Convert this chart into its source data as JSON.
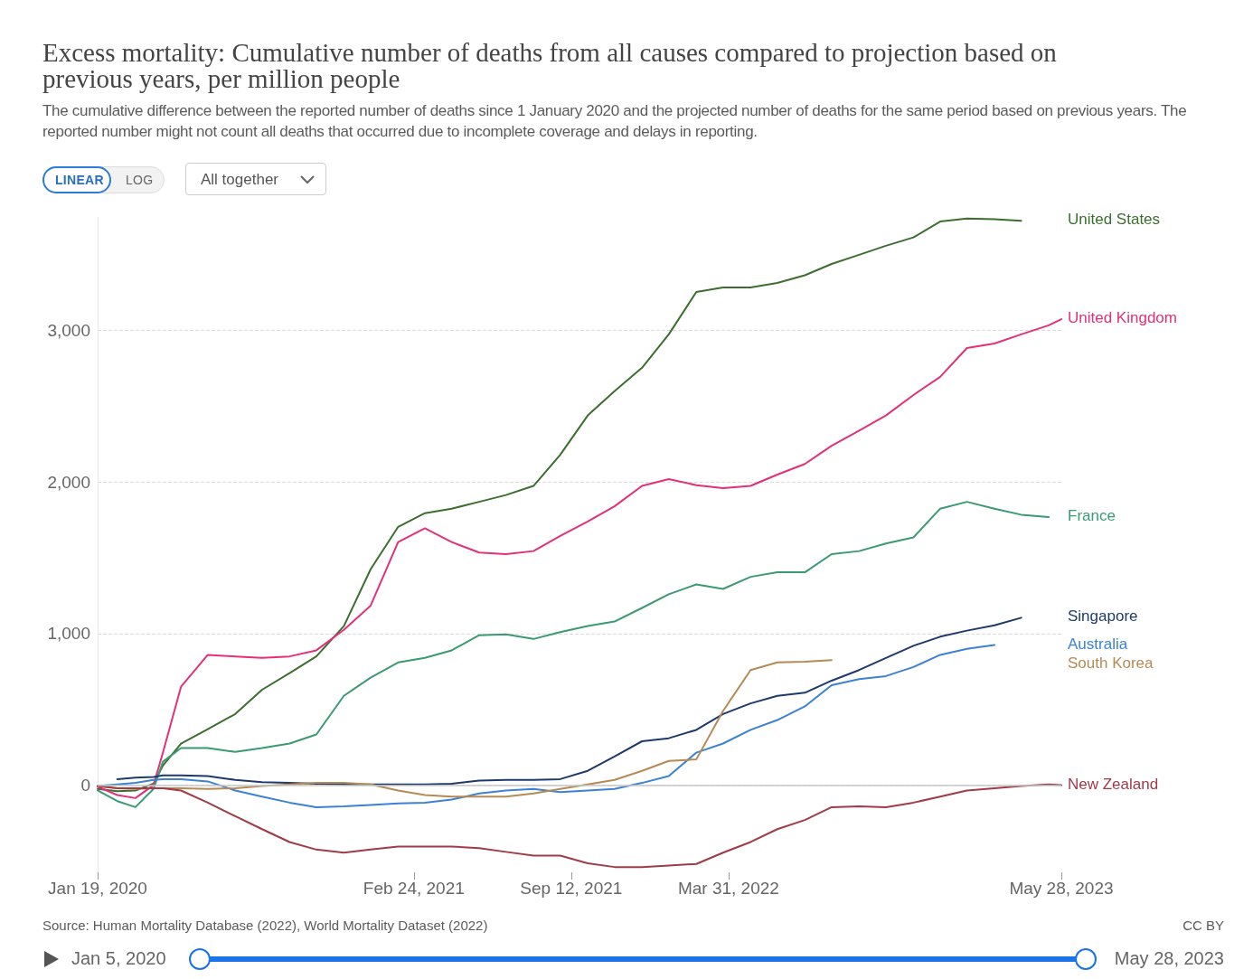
{
  "chart_data": {
    "type": "line",
    "title": "Excess mortality: Cumulative number of deaths from all causes compared to projection based on previous years, per million people",
    "subtitle": "The cumulative difference between the reported number of deaths since 1 January 2020 and the projected number of deaths for the same period based on previous years. The reported number might not count all deaths that occurred due to incomplete coverage and delays in reporting.",
    "annotations": [
      "Source: Human Mortality Database (2022), World Mortality Dataset (2022)",
      "CC BY",
      "LINEAR",
      "LOG",
      "All together",
      "Jan 5, 2020",
      "May 28, 2023"
    ],
    "x": [
      "2020-01-19",
      "2020-02-13",
      "2020-03-07",
      "2020-03-30",
      "2020-04-11",
      "2020-05-04",
      "2020-06-07",
      "2020-07-12",
      "2020-08-15",
      "2020-09-19",
      "2020-10-23",
      "2020-11-27",
      "2020-12-31",
      "2021-02-04",
      "2021-03-10",
      "2021-04-13",
      "2021-05-18",
      "2021-06-21",
      "2021-07-26",
      "2021-08-29",
      "2021-10-03",
      "2021-11-06",
      "2021-12-11",
      "2022-01-14",
      "2022-02-18",
      "2022-03-24",
      "2022-04-28",
      "2022-06-01",
      "2022-07-06",
      "2022-08-09",
      "2022-09-13",
      "2022-10-17",
      "2022-11-21",
      "2022-12-25",
      "2023-01-28",
      "2023-03-04",
      "2023-04-07",
      "2023-05-12",
      "2023-05-28"
    ],
    "series": [
      {
        "name": "United States",
        "color": "#3c6e2f",
        "values": [
          -25,
          -40,
          -35,
          10,
          130,
          275,
          370,
          470,
          630,
          740,
          850,
          1050,
          1425,
          1705,
          1795,
          1825,
          1870,
          1915,
          1975,
          2180,
          2440,
          2600,
          2755,
          2975,
          3255,
          3285,
          3285,
          3315,
          3365,
          3440,
          3500,
          3560,
          3615,
          3720,
          3740,
          3735,
          3725,
          null,
          null
        ]
      },
      {
        "name": "United Kingdom",
        "color": "#e2317a",
        "values": [
          -10,
          -65,
          -85,
          0,
          215,
          650,
          860,
          850,
          840,
          850,
          890,
          1025,
          1185,
          1605,
          1695,
          1605,
          1535,
          1525,
          1545,
          1645,
          1740,
          1840,
          1975,
          2020,
          1980,
          1960,
          1975,
          2050,
          2120,
          2240,
          2340,
          2440,
          2575,
          2695,
          2885,
          2915,
          2975,
          3035,
          3075
        ]
      },
      {
        "name": "France",
        "color": "#3a9a73",
        "values": [
          -35,
          -105,
          -145,
          -25,
          155,
          245,
          245,
          220,
          245,
          275,
          335,
          590,
          710,
          810,
          840,
          890,
          990,
          995,
          965,
          1010,
          1050,
          1080,
          1170,
          1260,
          1325,
          1295,
          1375,
          1405,
          1405,
          1525,
          1545,
          1595,
          1635,
          1825,
          1870,
          1825,
          1785,
          1770,
          null
        ]
      },
      {
        "name": "Singapore",
        "color": "#1d3a6b",
        "values": [
          null,
          40,
          50,
          55,
          65,
          65,
          60,
          35,
          20,
          15,
          10,
          5,
          5,
          5,
          5,
          10,
          30,
          35,
          35,
          40,
          95,
          190,
          290,
          310,
          365,
          470,
          540,
          590,
          610,
          690,
          760,
          840,
          920,
          980,
          1020,
          1055,
          1105,
          null,
          null
        ]
      },
      {
        "name": "Australia",
        "color": "#3b82d6",
        "values": [
          -5,
          5,
          15,
          35,
          40,
          40,
          25,
          -35,
          -75,
          -115,
          -145,
          -140,
          -130,
          -120,
          -115,
          -95,
          -55,
          -35,
          -25,
          -45,
          -35,
          -25,
          15,
          60,
          215,
          275,
          365,
          430,
          520,
          660,
          700,
          720,
          780,
          860,
          900,
          925,
          null,
          null,
          null
        ]
      },
      {
        "name": "South Korea",
        "color": "#b58a55",
        "values": [
          -5,
          -20,
          -25,
          -20,
          -20,
          -20,
          -25,
          -20,
          -5,
          5,
          15,
          15,
          5,
          -35,
          -65,
          -75,
          -75,
          -75,
          -55,
          -25,
          5,
          35,
          95,
          160,
          170,
          490,
          760,
          810,
          815,
          825,
          null,
          null,
          null,
          null,
          null,
          null,
          null,
          null,
          null
        ]
      },
      {
        "name": "New Zealand",
        "color": "#a13b47",
        "values": [
          -5,
          -20,
          -20,
          -20,
          -20,
          -35,
          -115,
          -205,
          -290,
          -375,
          -425,
          -445,
          -425,
          -405,
          -405,
          -405,
          -415,
          -440,
          -465,
          -465,
          -515,
          -540,
          -540,
          -530,
          -520,
          -445,
          -375,
          -290,
          -230,
          -145,
          -140,
          -145,
          -115,
          -75,
          -35,
          -20,
          -5,
          5,
          0
        ]
      }
    ],
    "xlim": [
      "2020-01-19",
      "2023-05-28"
    ],
    "xticks": [
      {
        "value": "2020-01-19",
        "label": "Jan 19, 2020"
      },
      {
        "value": "2021-02-24",
        "label": "Feb 24, 2021"
      },
      {
        "value": "2021-09-12",
        "label": "Sep 12, 2021"
      },
      {
        "value": "2022-03-31",
        "label": "Mar 31, 2022"
      },
      {
        "value": "2023-05-28",
        "label": "May 28, 2023"
      }
    ],
    "ylim": [
      -575,
      3750
    ],
    "yticks": [
      0,
      {
        "value": 1000,
        "label": "1,000"
      },
      {
        "value": 2000,
        "label": "2,000"
      },
      {
        "value": 3000,
        "label": "3,000"
      }
    ],
    "ref_lines": [
      {
        "axis": "y",
        "value": 0,
        "color": "#c8c8c8",
        "line_style": "solid"
      }
    ],
    "grid": "y",
    "legend": "right",
    "marker": "none",
    "line_style": "solid"
  }
}
